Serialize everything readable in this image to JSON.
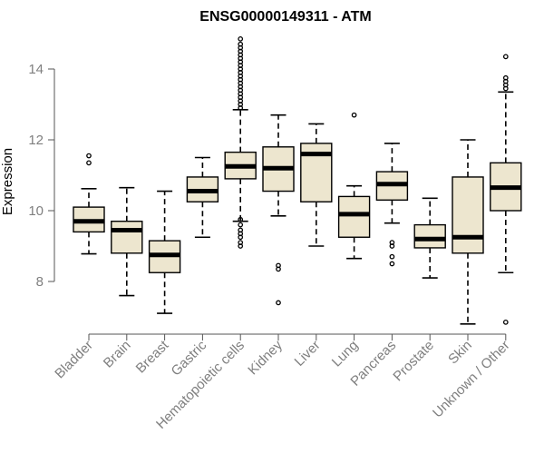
{
  "chart_data": {
    "type": "boxplot",
    "title": "ENSG00000149311 - ATM",
    "xlabel": "",
    "ylabel": "Expression",
    "ylim": [
      6.6,
      15.0
    ],
    "yticks": [
      8,
      10,
      12,
      14
    ],
    "categories": [
      "Bladder",
      "Brain",
      "Breast",
      "Gastric",
      "Hematopoietic cells",
      "Kidney",
      "Liver",
      "Lung",
      "Pancreas",
      "Prostate",
      "Skin",
      "Unknown / Other"
    ],
    "boxes": [
      {
        "whisker_low": 8.78,
        "q1": 9.4,
        "median": 9.7,
        "q3": 10.1,
        "whisker_high": 10.62,
        "outliers": [
          11.35,
          11.55
        ]
      },
      {
        "whisker_low": 7.6,
        "q1": 8.8,
        "median": 9.45,
        "q3": 9.7,
        "whisker_high": 10.65,
        "outliers": []
      },
      {
        "whisker_low": 7.1,
        "q1": 8.25,
        "median": 8.75,
        "q3": 9.15,
        "whisker_high": 10.55,
        "outliers": []
      },
      {
        "whisker_low": 9.25,
        "q1": 10.25,
        "median": 10.55,
        "q3": 10.95,
        "whisker_high": 11.5,
        "outliers": []
      },
      {
        "whisker_low": 9.7,
        "q1": 10.9,
        "median": 11.25,
        "q3": 11.65,
        "whisker_high": 12.85,
        "outliers": [
          9.0,
          9.1,
          9.25,
          9.35,
          9.45,
          9.6,
          9.75,
          12.9,
          13.0,
          13.1,
          13.2,
          13.3,
          13.4,
          13.5,
          13.6,
          13.7,
          13.8,
          13.9,
          14.0,
          14.1,
          14.2,
          14.3,
          14.4,
          14.5,
          14.6,
          14.7,
          14.85
        ]
      },
      {
        "whisker_low": 9.85,
        "q1": 10.55,
        "median": 11.2,
        "q3": 11.8,
        "whisker_high": 12.7,
        "outliers": [
          7.4,
          8.35,
          8.45
        ]
      },
      {
        "whisker_low": 9.0,
        "q1": 10.25,
        "median": 11.6,
        "q3": 11.9,
        "whisker_high": 12.45,
        "outliers": []
      },
      {
        "whisker_low": 8.65,
        "q1": 9.25,
        "median": 9.9,
        "q3": 10.4,
        "whisker_high": 10.7,
        "outliers": [
          12.7
        ]
      },
      {
        "whisker_low": 9.65,
        "q1": 10.3,
        "median": 10.75,
        "q3": 11.1,
        "whisker_high": 11.9,
        "outliers": [
          8.5,
          8.7,
          9.0,
          9.1
        ]
      },
      {
        "whisker_low": 8.1,
        "q1": 8.95,
        "median": 9.2,
        "q3": 9.6,
        "whisker_high": 10.35,
        "outliers": []
      },
      {
        "whisker_low": 6.8,
        "q1": 8.8,
        "median": 9.25,
        "q3": 10.95,
        "whisker_high": 12.0,
        "outliers": []
      },
      {
        "whisker_low": 8.25,
        "q1": 10.0,
        "median": 10.65,
        "q3": 11.35,
        "whisker_high": 13.35,
        "outliers": [
          6.85,
          13.45,
          13.55,
          13.65,
          13.75,
          14.35
        ]
      }
    ],
    "colors": {
      "box_fill": "#ede6cf",
      "line": "#000000",
      "axis": "#555555",
      "tick_label": "#7f7f7f",
      "title": "#000000"
    }
  }
}
